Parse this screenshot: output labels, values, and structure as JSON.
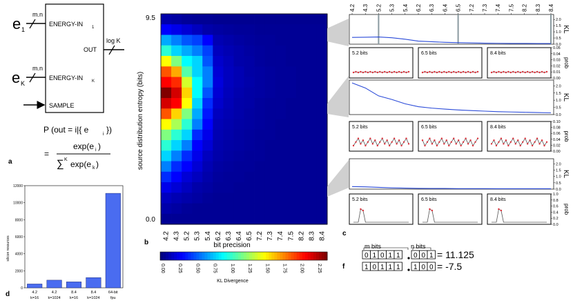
{
  "panel_a": {
    "label": "a",
    "input_e1": "e",
    "input_e1_sub": "1",
    "input_ek": "e",
    "input_ek_sub": "K",
    "bus_width_1": "m.n",
    "bus_width_k": "m.n",
    "port_energy_in_1": "ENERGY-IN",
    "port_energy_in_1_sub": "1",
    "port_energy_in_k": "ENERGY-IN",
    "port_energy_in_k_sub": "K",
    "port_sample": "SAMPLE",
    "port_out": "OUT",
    "out_width": "log K",
    "formula_lhs": "P (out = i|{ e",
    "formula_lhs_sub": "i",
    "formula_lhs_tail": "})",
    "formula_eq": "=",
    "formula_num": "exp(e",
    "formula_num_sub": "i",
    "formula_num_tail": ")",
    "formula_den_sum": "∑",
    "formula_den_sup": "K",
    "formula_den": "exp(e",
    "formula_den_sub": "k",
    "formula_den_tail": ")"
  },
  "panel_b": {
    "label": "b",
    "ylabel": "source distribution entropy (bits)",
    "xlabel": "bit precision",
    "y_top": "9.5",
    "y_bottom": "0.0",
    "colorbar_label": "KL Divergence",
    "colorbar_ticks": [
      "0.00",
      "0.25",
      "0.50",
      "0.75",
      "1.00",
      "1.25",
      "1.50",
      "1.75",
      "2.00",
      "2.25"
    ]
  },
  "panel_c": {
    "label": "c",
    "kl_label": "KL",
    "prob_label": "prob",
    "kl_ticks": [
      "0.0",
      "0.5",
      "1.0",
      "1.5",
      "2.0"
    ],
    "prob_ticks_small": [
      "0.00",
      "0.01",
      "0.02",
      "0.03",
      "0.04",
      "0.05"
    ],
    "prob_ticks_mid": [
      "0.00",
      "0.02",
      "0.04",
      "0.06",
      "0.08",
      "0.10"
    ],
    "prob_ticks_big": [
      "0.0",
      "0.2",
      "0.4",
      "0.6",
      "0.8",
      "1.0"
    ],
    "inset_labels": [
      "5.2 bits",
      "6.5 bits",
      "8.4 bits"
    ]
  },
  "panel_d": {
    "label": "d",
    "ylabel": "silicon resources"
  },
  "panel_f": {
    "label": "f",
    "m_bits_label": "m bits",
    "n_bits_label": "n bits",
    "row1_int": [
      "0",
      "1",
      "0",
      "1",
      "1"
    ],
    "row1_frac": [
      "0",
      "0",
      "1"
    ],
    "row1_value": "= 11.125",
    "row2_int": [
      "1",
      "0",
      "1",
      "1",
      "1"
    ],
    "row2_frac": [
      "1",
      "0",
      "0"
    ],
    "row2_value": "= -7.5"
  },
  "chart_data": [
    {
      "type": "heatmap",
      "title": "",
      "xlabel": "bit precision",
      "ylabel": "source distribution entropy (bits)",
      "x": [
        "4.2",
        "4.3",
        "5.2",
        "5.3",
        "5.4",
        "6.2",
        "6.3",
        "6.4",
        "6.5",
        "7.2",
        "7.3",
        "7.4",
        "7.5",
        "8.2",
        "8.3",
        "8.4"
      ],
      "y_range": [
        0.0,
        9.5
      ],
      "rows": 20,
      "colorbar_range": [
        0.0,
        2.4
      ],
      "values_top_to_bottom": [
        [
          0.1,
          0.08,
          0.06,
          0.05,
          0.05,
          0.04,
          0.04,
          0.04,
          0.04,
          0.04,
          0.04,
          0.04,
          0.04,
          0.04,
          0.04,
          0.04
        ],
        [
          0.3,
          0.25,
          0.2,
          0.15,
          0.1,
          0.08,
          0.07,
          0.06,
          0.06,
          0.05,
          0.05,
          0.05,
          0.05,
          0.05,
          0.05,
          0.05
        ],
        [
          0.7,
          0.6,
          0.5,
          0.45,
          0.3,
          0.12,
          0.1,
          0.08,
          0.07,
          0.06,
          0.06,
          0.05,
          0.05,
          0.05,
          0.05,
          0.05
        ],
        [
          1.0,
          0.8,
          0.7,
          0.6,
          0.45,
          0.15,
          0.12,
          0.1,
          0.08,
          0.07,
          0.06,
          0.06,
          0.05,
          0.05,
          0.05,
          0.05
        ],
        [
          1.5,
          1.2,
          0.9,
          0.8,
          0.5,
          0.18,
          0.14,
          0.1,
          0.09,
          0.07,
          0.06,
          0.06,
          0.05,
          0.05,
          0.05,
          0.05
        ],
        [
          1.9,
          1.7,
          1.1,
          0.8,
          0.6,
          0.2,
          0.15,
          0.12,
          0.09,
          0.08,
          0.07,
          0.06,
          0.06,
          0.05,
          0.05,
          0.05
        ],
        [
          2.1,
          2.0,
          1.4,
          0.9,
          0.6,
          0.22,
          0.15,
          0.12,
          0.1,
          0.08,
          0.07,
          0.06,
          0.06,
          0.05,
          0.05,
          0.05
        ],
        [
          2.4,
          2.2,
          1.6,
          0.9,
          0.5,
          0.2,
          0.14,
          0.11,
          0.09,
          0.08,
          0.07,
          0.06,
          0.06,
          0.05,
          0.05,
          0.05
        ],
        [
          2.2,
          2.1,
          1.5,
          0.8,
          0.4,
          0.18,
          0.13,
          0.1,
          0.09,
          0.07,
          0.06,
          0.06,
          0.05,
          0.05,
          0.05,
          0.05
        ],
        [
          1.9,
          1.6,
          1.2,
          0.7,
          0.35,
          0.15,
          0.12,
          0.1,
          0.08,
          0.07,
          0.06,
          0.06,
          0.05,
          0.05,
          0.05,
          0.05
        ],
        [
          1.5,
          1.3,
          1.0,
          0.6,
          0.3,
          0.13,
          0.11,
          0.09,
          0.08,
          0.07,
          0.06,
          0.05,
          0.05,
          0.05,
          0.05,
          0.05
        ],
        [
          1.2,
          1.0,
          0.8,
          0.4,
          0.25,
          0.12,
          0.1,
          0.08,
          0.07,
          0.06,
          0.06,
          0.05,
          0.05,
          0.05,
          0.05,
          0.05
        ],
        [
          1.0,
          0.8,
          0.6,
          0.3,
          0.2,
          0.11,
          0.09,
          0.08,
          0.07,
          0.06,
          0.05,
          0.05,
          0.05,
          0.05,
          0.05,
          0.05
        ],
        [
          0.8,
          0.6,
          0.4,
          0.25,
          0.15,
          0.1,
          0.08,
          0.07,
          0.06,
          0.06,
          0.05,
          0.05,
          0.05,
          0.05,
          0.05,
          0.05
        ],
        [
          0.6,
          0.4,
          0.3,
          0.2,
          0.12,
          0.08,
          0.07,
          0.06,
          0.06,
          0.05,
          0.05,
          0.05,
          0.05,
          0.05,
          0.05,
          0.05
        ],
        [
          0.4,
          0.3,
          0.2,
          0.15,
          0.1,
          0.07,
          0.06,
          0.06,
          0.05,
          0.05,
          0.05,
          0.05,
          0.05,
          0.05,
          0.05,
          0.05
        ],
        [
          0.25,
          0.2,
          0.15,
          0.1,
          0.08,
          0.06,
          0.06,
          0.05,
          0.05,
          0.05,
          0.05,
          0.05,
          0.05,
          0.05,
          0.05,
          0.05
        ],
        [
          0.15,
          0.12,
          0.1,
          0.08,
          0.06,
          0.05,
          0.05,
          0.05,
          0.05,
          0.05,
          0.05,
          0.05,
          0.05,
          0.05,
          0.05,
          0.05
        ],
        [
          0.1,
          0.08,
          0.06,
          0.05,
          0.05,
          0.05,
          0.05,
          0.05,
          0.05,
          0.05,
          0.05,
          0.05,
          0.05,
          0.05,
          0.05,
          0.05
        ],
        [
          0.05,
          0.05,
          0.05,
          0.05,
          0.05,
          0.05,
          0.05,
          0.05,
          0.05,
          0.05,
          0.05,
          0.05,
          0.05,
          0.05,
          0.05,
          0.05
        ]
      ]
    },
    {
      "type": "bar",
      "title": "",
      "xlabel": "",
      "ylabel": "silicon resources",
      "categories": [
        "4.2\nk=16",
        "4.2\nk=1024",
        "8.4\nk=16",
        "8.4\nk=1024",
        "64-bit\nfpu"
      ],
      "category_lines": [
        [
          "4.2",
          "k=16"
        ],
        [
          "4.2",
          "k=1024"
        ],
        [
          "8.4",
          "k=16"
        ],
        [
          "8.4",
          "k=1024"
        ],
        [
          "64-bit",
          "fpu"
        ]
      ],
      "values": [
        450,
        900,
        700,
        1200,
        11100
      ],
      "ylim": [
        0,
        12000
      ],
      "yticks": [
        "0",
        "2000",
        "4000",
        "6000",
        "8000",
        "10000",
        "12000"
      ]
    },
    {
      "type": "line",
      "title": "",
      "ylabel": "KL",
      "x_ticks_top": [
        "4.2",
        "4.3",
        "5.2",
        "5.3",
        "5.4",
        "6.2",
        "6.3",
        "6.4",
        "6.5",
        "7.2",
        "7.3",
        "7.4",
        "7.5",
        "8.2",
        "8.3",
        "8.4"
      ],
      "ylim": [
        0,
        2.4
      ],
      "rows": [
        {
          "values": [
            0.55,
            0.56,
            0.58,
            0.52,
            0.4,
            0.25,
            0.2,
            0.15,
            0.12,
            0.1,
            0.08,
            0.07,
            0.06,
            0.06,
            0.05,
            0.05
          ],
          "markers_at": [
            "5.2",
            "6.5",
            "8.4"
          ]
        },
        {
          "values": [
            2.2,
            1.85,
            1.3,
            1.05,
            0.75,
            0.55,
            0.45,
            0.38,
            0.32,
            0.28,
            0.24,
            0.2,
            0.18,
            0.16,
            0.14,
            0.12
          ]
        },
        {
          "values": [
            0.2,
            0.18,
            0.14,
            0.1,
            0.08,
            0.06,
            0.05,
            0.05,
            0.04,
            0.04,
            0.04,
            0.03,
            0.03,
            0.03,
            0.03,
            0.03
          ]
        }
      ]
    }
  ]
}
